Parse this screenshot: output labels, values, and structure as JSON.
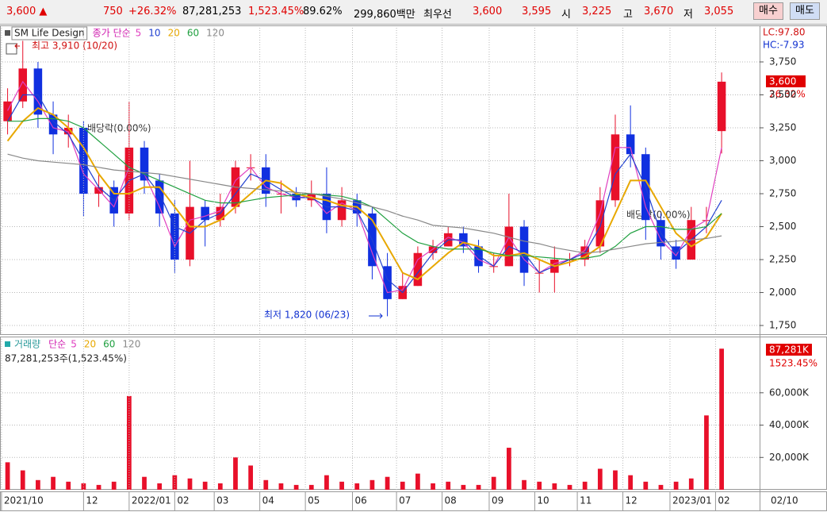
{
  "status_bar": {
    "items": [
      {
        "text": "3,600 ▲",
        "color": "#e00000"
      },
      {
        "text": "750",
        "color": "#e00000"
      },
      {
        "text": "+26.32%",
        "color": "#e00000"
      },
      {
        "text": "87,281,253",
        "color": "#000000"
      },
      {
        "text": "1,523.45%",
        "color": "#e00000"
      },
      {
        "text": "89.62%",
        "color": "#000000"
      },
      {
        "text": "299,860백만",
        "color": "#000000"
      },
      {
        "text": "최우선",
        "color": "#000000"
      },
      {
        "text": "3,600",
        "color": "#e00000"
      },
      {
        "text": "3,595",
        "color": "#e00000"
      },
      {
        "text": "시",
        "color": "#000000"
      },
      {
        "text": "3,225",
        "color": "#e00000"
      },
      {
        "text": "고",
        "color": "#000000"
      },
      {
        "text": "3,670",
        "color": "#e00000"
      },
      {
        "text": "저",
        "color": "#000000"
      },
      {
        "text": "3,055",
        "color": "#e00000"
      }
    ],
    "buttons": [
      "매수",
      "매도"
    ]
  },
  "chart_data": [
    {
      "type": "candlestick",
      "title": "SM Life Design",
      "legend_prefix": "종가 단순",
      "x": [
        0.5,
        1.5,
        2.5,
        3.5,
        4.5,
        5.5,
        6.5,
        7.5,
        8.5,
        9.5,
        10.5,
        11.5,
        12.5,
        13.5,
        14.5,
        15.5,
        16.5,
        17.5,
        18.5,
        19.5,
        20.5,
        21.5,
        22.5,
        23.5,
        24.5,
        25.5,
        26.5,
        27.5,
        28.5,
        29.5,
        30.5,
        31.5,
        32.5,
        33.5,
        34.5,
        35.5,
        36.5,
        37.5,
        38.5,
        39.5,
        40.5,
        41.5,
        42.5,
        43.5,
        44.5,
        45.5,
        46.5,
        47.5
      ],
      "open": [
        3300,
        3450,
        3700,
        3350,
        3200,
        3250,
        2750,
        2800,
        2600,
        3100,
        2850,
        2600,
        2250,
        2650,
        2550,
        2650,
        2950,
        2950,
        2750,
        2750,
        2700,
        2750,
        2550,
        2700,
        2600,
        2200,
        1950,
        2050,
        2300,
        2350,
        2450,
        2350,
        2200,
        2200,
        2500,
        2150,
        2150,
        2250,
        2250,
        2350,
        2700,
        3200,
        3050,
        2550,
        2350,
        2250,
        2550,
        3225
      ],
      "high": [
        3550,
        3910,
        3750,
        3450,
        3350,
        3300,
        2900,
        2850,
        3450,
        3150,
        2900,
        2700,
        3000,
        2700,
        2750,
        3000,
        3050,
        3050,
        2850,
        2800,
        2850,
        2950,
        2800,
        2750,
        2650,
        2300,
        2150,
        2350,
        2400,
        2500,
        2500,
        2400,
        2300,
        2750,
        2550,
        2250,
        2350,
        2300,
        2400,
        2800,
        3350,
        3420,
        3100,
        2600,
        2400,
        2650,
        2650,
        3670
      ],
      "low": [
        3200,
        3400,
        3250,
        3050,
        3100,
        2580,
        2650,
        2500,
        2550,
        2750,
        2500,
        2150,
        2200,
        2350,
        2500,
        2600,
        2850,
        2650,
        2600,
        2650,
        2650,
        2450,
        2500,
        2500,
        2100,
        1820,
        1950,
        2050,
        2250,
        2350,
        2300,
        2150,
        2150,
        2200,
        2050,
        2000,
        2000,
        2200,
        2200,
        2300,
        2650,
        2950,
        2400,
        2250,
        2180,
        2250,
        2450,
        3055
      ],
      "close": [
        3450,
        3700,
        3350,
        3200,
        3250,
        2750,
        2800,
        2600,
        3100,
        2850,
        2600,
        2250,
        2650,
        2550,
        2650,
        2950,
        2950,
        2750,
        2750,
        2700,
        2750,
        2550,
        2700,
        2600,
        2200,
        1950,
        2050,
        2300,
        2350,
        2450,
        2350,
        2200,
        2200,
        2500,
        2150,
        2150,
        2250,
        2250,
        2350,
        2700,
        3200,
        3050,
        2550,
        2350,
        2250,
        2550,
        2550,
        3600
      ],
      "up_color": "#e8102a",
      "down_color": "#1030e0",
      "series": [
        {
          "name": "5",
          "color": "#e040c0",
          "values": [
            3380,
            3600,
            3450,
            3250,
            3220,
            2900,
            2780,
            2650,
            2950,
            2900,
            2650,
            2350,
            2550,
            2580,
            2620,
            2850,
            2950,
            2800,
            2750,
            2720,
            2730,
            2600,
            2680,
            2620,
            2300,
            2000,
            2020,
            2250,
            2330,
            2420,
            2380,
            2250,
            2200,
            2420,
            2250,
            2150,
            2220,
            2250,
            2320,
            2600,
            3100,
            3100,
            2650,
            2400,
            2280,
            2480,
            2550,
            3100
          ]
        },
        {
          "name": "10",
          "color": "#2040d0",
          "values": [
            3300,
            3500,
            3500,
            3300,
            3200,
            3000,
            2800,
            2700,
            2850,
            2900,
            2750,
            2500,
            2450,
            2550,
            2600,
            2750,
            2900,
            2850,
            2780,
            2720,
            2720,
            2650,
            2650,
            2620,
            2400,
            2100,
            2000,
            2150,
            2300,
            2400,
            2400,
            2280,
            2200,
            2350,
            2300,
            2150,
            2200,
            2250,
            2300,
            2500,
            2900,
            3050,
            2800,
            2450,
            2300,
            2400,
            2500,
            2700
          ]
        },
        {
          "name": "20",
          "color": "#e8a800",
          "values": [
            3150,
            3300,
            3400,
            3350,
            3250,
            3100,
            2900,
            2750,
            2750,
            2800,
            2800,
            2650,
            2500,
            2500,
            2550,
            2650,
            2750,
            2850,
            2830,
            2750,
            2720,
            2700,
            2660,
            2650,
            2550,
            2350,
            2150,
            2100,
            2200,
            2300,
            2380,
            2350,
            2280,
            2280,
            2300,
            2250,
            2200,
            2230,
            2270,
            2350,
            2600,
            2850,
            2850,
            2650,
            2450,
            2350,
            2420,
            2600
          ]
        },
        {
          "name": "60",
          "color": "#20a040",
          "values": [
            3300,
            3300,
            3320,
            3320,
            3300,
            3250,
            3150,
            3050,
            2950,
            2900,
            2850,
            2800,
            2750,
            2700,
            2680,
            2680,
            2700,
            2720,
            2730,
            2740,
            2750,
            2740,
            2730,
            2700,
            2650,
            2550,
            2450,
            2380,
            2350,
            2330,
            2330,
            2330,
            2300,
            2280,
            2280,
            2270,
            2260,
            2250,
            2260,
            2280,
            2350,
            2450,
            2500,
            2500,
            2480,
            2480,
            2500,
            2600
          ]
        },
        {
          "name": "120",
          "color": "#888888",
          "values": [
            3050,
            3020,
            3000,
            2990,
            2980,
            2970,
            2950,
            2930,
            2920,
            2910,
            2900,
            2880,
            2860,
            2840,
            2820,
            2800,
            2790,
            2780,
            2770,
            2760,
            2750,
            2730,
            2710,
            2680,
            2650,
            2620,
            2580,
            2550,
            2510,
            2500,
            2490,
            2470,
            2450,
            2420,
            2390,
            2370,
            2340,
            2320,
            2300,
            2310,
            2330,
            2350,
            2370,
            2380,
            2390,
            2400,
            2410,
            2430
          ]
        }
      ],
      "xlim": [
        0,
        50
      ],
      "ylim": [
        1690,
        4009
      ],
      "yticks": [
        {
          "value": 1750,
          "label": "1,750"
        },
        {
          "value": 2000,
          "label": "2,000"
        },
        {
          "value": 2250,
          "label": "2,250"
        },
        {
          "value": 2500,
          "label": "2,500"
        },
        {
          "value": 2750,
          "label": "2,750"
        },
        {
          "value": 3000,
          "label": "3,000"
        },
        {
          "value": 3250,
          "label": "3,250"
        },
        {
          "value": 3500,
          "label": "3,500"
        },
        {
          "value": 3750,
          "label": "3,750"
        }
      ],
      "grid": true,
      "annotations": {
        "high": "최고 3,910 (10/20)",
        "low": "최저 1,820 (06/23)",
        "dividend": "배당락(0.00%)",
        "lc": "LC:97.80",
        "hc": "HC:-7.93",
        "last_price": "3,600",
        "last_change": "26.32%"
      }
    },
    {
      "type": "bar",
      "title": "거래량",
      "legend_prefix": "단순",
      "color": "#e8102a",
      "legend": [
        {
          "name": "5",
          "color": "#e040c0"
        },
        {
          "name": "20",
          "color": "#e8a800"
        },
        {
          "name": "60",
          "color": "#20a040"
        },
        {
          "name": "120",
          "color": "#888888"
        }
      ],
      "x": [
        0.5,
        1.5,
        2.5,
        3.5,
        4.5,
        5.5,
        6.5,
        7.5,
        8.5,
        9.5,
        10.5,
        11.5,
        12.5,
        13.5,
        14.5,
        15.5,
        16.5,
        17.5,
        18.5,
        19.5,
        20.5,
        21.5,
        22.5,
        23.5,
        24.5,
        25.5,
        26.5,
        27.5,
        28.5,
        29.5,
        30.5,
        31.5,
        32.5,
        33.5,
        34.5,
        35.5,
        36.5,
        37.5,
        38.5,
        39.5,
        40.5,
        41.5,
        42.5,
        43.5,
        44.5,
        45.5,
        46.5,
        47.5
      ],
      "values": [
        17000,
        12000,
        6000,
        8000,
        5000,
        4000,
        3000,
        5000,
        58000,
        8000,
        4000,
        9000,
        7000,
        5000,
        4000,
        20000,
        15000,
        6000,
        4000,
        3000,
        3000,
        9000,
        5000,
        4000,
        6000,
        8000,
        5000,
        10000,
        4000,
        5000,
        3000,
        3000,
        8000,
        26000,
        6000,
        5000,
        4000,
        3000,
        5000,
        13000,
        12000,
        9000,
        5000,
        3000,
        5000,
        7000,
        46000,
        87281
      ],
      "xlim": [
        0,
        50
      ],
      "ylim": [
        0,
        93300
      ],
      "yticks": [
        {
          "value": 20000,
          "label": "20,000K"
        },
        {
          "value": 40000,
          "label": "40,000K"
        },
        {
          "value": 60000,
          "label": "60,000K"
        }
      ],
      "grid": true,
      "annotations": {
        "summary": "87,281,253주(1,523.45%)",
        "last_volume": "87,281K",
        "last_change": "1523.45%"
      },
      "xticks": [
        {
          "value": 0.1,
          "label": "2021/10"
        },
        {
          "value": 5.5,
          "label": "12"
        },
        {
          "value": 8.5,
          "label": "2022/01"
        },
        {
          "value": 11.5,
          "label": "02"
        },
        {
          "value": 14.1,
          "label": "03"
        },
        {
          "value": 17.1,
          "label": "04"
        },
        {
          "value": 20.1,
          "label": "05"
        },
        {
          "value": 23.2,
          "label": "06"
        },
        {
          "value": 26.1,
          "label": "07"
        },
        {
          "value": 29.1,
          "label": "08"
        },
        {
          "value": 32.2,
          "label": "09"
        },
        {
          "value": 35.2,
          "label": "10"
        },
        {
          "value": 38.0,
          "label": "11"
        },
        {
          "value": 41.0,
          "label": "12"
        },
        {
          "value": 44.1,
          "label": "2023/01"
        },
        {
          "value": 47.1,
          "label": "02"
        }
      ],
      "last_date": "02/10"
    }
  ]
}
